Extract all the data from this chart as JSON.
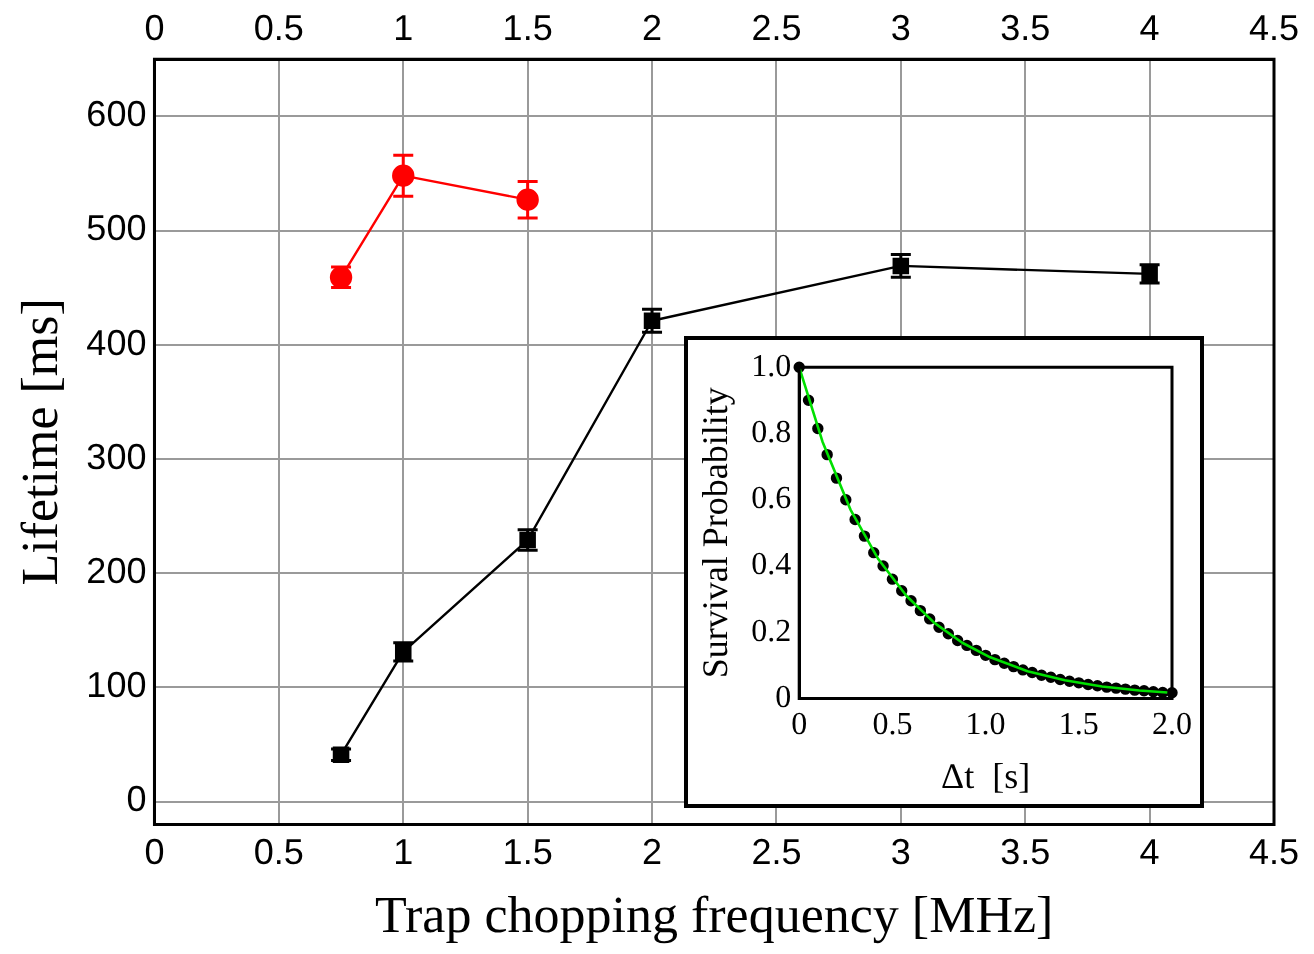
{
  "chart_data": [
    {
      "type": "line",
      "xlabel": "Trap chopping frequency [MHz]",
      "ylabel": "Lifetime [ms]",
      "xlim": [
        0,
        4.5
      ],
      "xticks": [
        0,
        0.5,
        1,
        1.5,
        2,
        2.5,
        3,
        3.5,
        4,
        4.5
      ],
      "x2lim": [
        0,
        4.5
      ],
      "x2ticks": [
        0,
        0.5,
        1,
        1.5,
        2,
        2.5,
        3,
        3.5,
        4,
        4.5
      ],
      "ylim": [
        -20,
        650
      ],
      "yticks": [
        0,
        100,
        200,
        300,
        400,
        500,
        600
      ],
      "grid": true,
      "series": [
        {
          "color": "#ff0000",
          "marker": "circle",
          "x": [
            0.75,
            1,
            1.5
          ],
          "values": [
            459,
            548,
            527
          ],
          "errors": [
            9,
            18,
            16
          ]
        },
        {
          "color": "#000000",
          "marker": "square",
          "x": [
            0.75,
            1,
            1.5,
            2,
            3,
            4
          ],
          "values": [
            41,
            131,
            229,
            421,
            469,
            462
          ],
          "errors": [
            5,
            8,
            9,
            10,
            10,
            8
          ]
        }
      ]
    },
    {
      "type": "scatter",
      "xlabel": "Δt  [s]",
      "ylabel": "Survival Probability",
      "xlim": [
        0,
        2
      ],
      "xticks": [
        0,
        0.5,
        {
          "value": 1,
          "label": "1.0"
        },
        1.5,
        {
          "value": 2,
          "label": "2.0"
        }
      ],
      "ylim": [
        0,
        1
      ],
      "yticks": [
        0,
        0.2,
        0.4,
        0.6,
        0.8,
        {
          "value": 1,
          "label": "1.0"
        }
      ],
      "series": [
        {
          "type": "line",
          "color": "#00e000",
          "marker": "none",
          "x": [
            0,
            0.125,
            0.275,
            0.425,
            0.575,
            0.725,
            0.875,
            1.025,
            1.225,
            1.425,
            1.625,
            1.825,
            1.975
          ],
          "values": [
            1.0,
            0.775,
            0.57,
            0.42,
            0.31,
            0.228,
            0.168,
            0.124,
            0.082,
            0.055,
            0.036,
            0.024,
            0.018
          ]
        },
        {
          "color": "#000000",
          "marker": "circle",
          "x": [
            0,
            0.05,
            0.1,
            0.15,
            0.2,
            0.25,
            0.3,
            0.35,
            0.4,
            0.45,
            0.5,
            0.55,
            0.6,
            0.65,
            0.7,
            0.75,
            0.8,
            0.85,
            0.9,
            0.95,
            1.0,
            1.05,
            1.1,
            1.15,
            1.2,
            1.25,
            1.3,
            1.35,
            1.4,
            1.45,
            1.5,
            1.55,
            1.6,
            1.65,
            1.7,
            1.75,
            1.8,
            1.85,
            1.9,
            1.95,
            2.0
          ],
          "values": [
            1.0,
            0.9,
            0.815,
            0.736,
            0.665,
            0.6,
            0.54,
            0.49,
            0.44,
            0.4,
            0.36,
            0.325,
            0.295,
            0.265,
            0.24,
            0.215,
            0.195,
            0.175,
            0.16,
            0.145,
            0.13,
            0.117,
            0.106,
            0.096,
            0.086,
            0.078,
            0.07,
            0.064,
            0.057,
            0.052,
            0.047,
            0.042,
            0.038,
            0.034,
            0.031,
            0.028,
            0.025,
            0.023,
            0.02,
            0.018,
            0.017
          ]
        }
      ]
    }
  ]
}
